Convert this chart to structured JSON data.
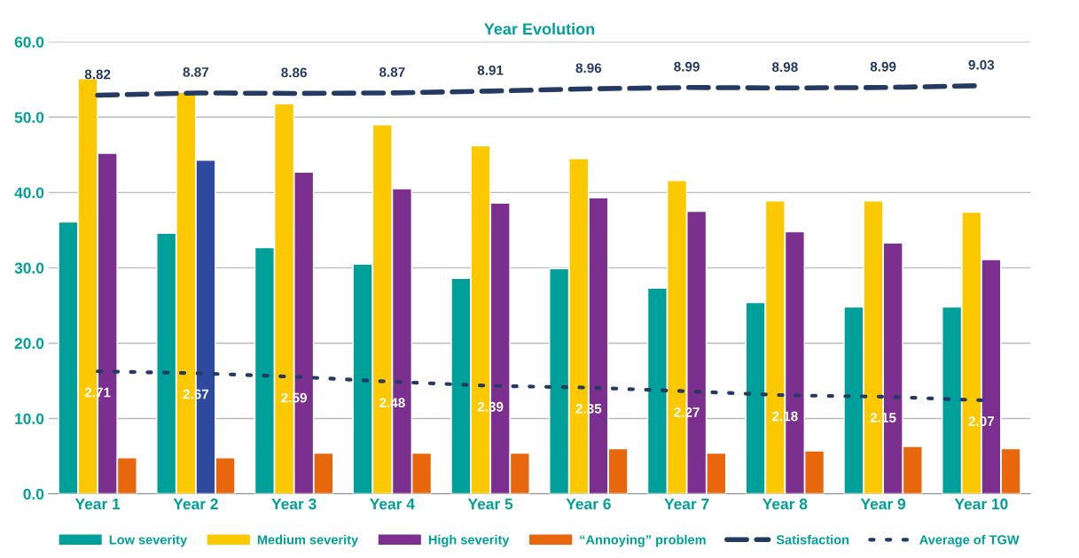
{
  "chart_data": {
    "type": "bar",
    "title": "Year Evolution",
    "categories": [
      "Year 1",
      "Year 2",
      "Year 3",
      "Year 4",
      "Year 5",
      "Year 6",
      "Year 7",
      "Year 8",
      "Year 9",
      "Year 10"
    ],
    "series": [
      {
        "name": "Low severity",
        "color": "#00a09a",
        "values": [
          36.1,
          34.6,
          32.7,
          30.5,
          28.6,
          29.9,
          27.3,
          25.4,
          24.8,
          24.8
        ]
      },
      {
        "name": "Medium severity",
        "color": "#fcc800",
        "values": [
          55.1,
          53.3,
          51.8,
          49.0,
          46.2,
          44.5,
          41.6,
          38.9,
          38.9,
          37.4
        ]
      },
      {
        "name": "High severity",
        "color": "#7b2f8e",
        "colors": [
          "#7b2f8e",
          "#2e4a9e",
          "#7b2f8e",
          "#7b2f8e",
          "#7b2f8e",
          "#7b2f8e",
          "#7b2f8e",
          "#7b2f8e",
          "#7b2f8e",
          "#7b2f8e"
        ],
        "values": [
          45.2,
          44.3,
          42.7,
          40.5,
          38.6,
          39.3,
          37.5,
          34.8,
          33.3,
          31.1
        ]
      },
      {
        "name": "“Annoying” problem",
        "color": "#e8670c",
        "values": [
          4.8,
          4.8,
          5.4,
          5.4,
          5.4,
          6.0,
          5.4,
          5.7,
          6.3,
          6.0
        ]
      },
      {
        "name": "Satisfaction",
        "type": "line",
        "axis": "y2",
        "line_style": "dashed",
        "color": "#253a63",
        "values": [
          8.82,
          8.87,
          8.86,
          8.87,
          8.91,
          8.96,
          8.99,
          8.98,
          8.99,
          9.03
        ],
        "value_labels": [
          "8.82",
          "8.87",
          "8.86",
          "8.87",
          "8.91",
          "8.96",
          "8.99",
          "8.98",
          "8.99",
          "9.03"
        ]
      },
      {
        "name": "Average of TGW",
        "type": "line",
        "axis": "y2",
        "line_style": "dotted",
        "color": "#253a63",
        "values": [
          2.71,
          2.67,
          2.59,
          2.48,
          2.39,
          2.35,
          2.27,
          2.18,
          2.15,
          2.07
        ],
        "value_labels": [
          "2.71",
          "2.67",
          "2.59",
          "2.48",
          "2.39",
          "2.35",
          "2.27",
          "2.18",
          "2.15",
          "2.07"
        ]
      }
    ],
    "ylim": [
      0,
      60
    ],
    "yticks": [
      {
        "value": 0,
        "label": "0.0"
      },
      {
        "value": 10,
        "label": "10.0"
      },
      {
        "value": 20,
        "label": "20.0"
      },
      {
        "value": 30,
        "label": "30.0"
      },
      {
        "value": 40,
        "label": "40.0"
      },
      {
        "value": 50,
        "label": "50.0"
      },
      {
        "value": 60,
        "label": "60.0"
      }
    ],
    "y2lim": [
      0,
      10
    ],
    "tick_labels": "xy",
    "grid": "y",
    "legend": "bottom",
    "marker": "none"
  }
}
